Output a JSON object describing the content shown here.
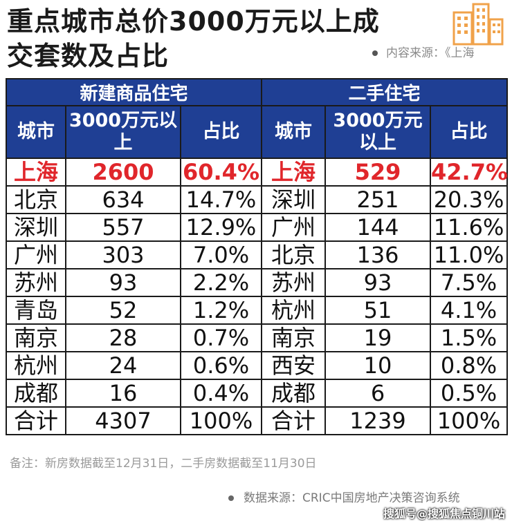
{
  "title": {
    "line1": "重点城市总价3000万元以上成",
    "line2": "交套数及占比"
  },
  "source_top": "内容来源：《上海",
  "table": {
    "groups": {
      "new": "新建商品住宅",
      "second": "二手住宅"
    },
    "columns": {
      "city": "城市",
      "count": "3000万元以上",
      "share": "占比"
    },
    "rows": [
      {
        "new_city": "上海",
        "new_count": "2600",
        "new_share": "60.4%",
        "sec_city": "上海",
        "sec_count": "529",
        "sec_share": "42.7%"
      },
      {
        "new_city": "北京",
        "new_count": "634",
        "new_share": "14.7%",
        "sec_city": "深圳",
        "sec_count": "251",
        "sec_share": "20.3%"
      },
      {
        "new_city": "深圳",
        "new_count": "557",
        "new_share": "12.9%",
        "sec_city": "广州",
        "sec_count": "144",
        "sec_share": "11.6%"
      },
      {
        "new_city": "广州",
        "new_count": "303",
        "new_share": "7.0%",
        "sec_city": "北京",
        "sec_count": "136",
        "sec_share": "11.0%"
      },
      {
        "new_city": "苏州",
        "new_count": "93",
        "new_share": "2.2%",
        "sec_city": "苏州",
        "sec_count": "93",
        "sec_share": "7.5%"
      },
      {
        "new_city": "青岛",
        "new_count": "52",
        "new_share": "1.2%",
        "sec_city": "杭州",
        "sec_count": "51",
        "sec_share": "4.1%"
      },
      {
        "new_city": "南京",
        "new_count": "28",
        "new_share": "0.7%",
        "sec_city": "南京",
        "sec_count": "19",
        "sec_share": "1.5%"
      },
      {
        "new_city": "杭州",
        "new_count": "24",
        "new_share": "0.6%",
        "sec_city": "西安",
        "sec_count": "10",
        "sec_share": "0.8%"
      },
      {
        "new_city": "成都",
        "new_count": "16",
        "new_share": "0.4%",
        "sec_city": "成都",
        "sec_count": "6",
        "sec_share": "0.5%"
      },
      {
        "new_city": "合计",
        "new_count": "4307",
        "new_share": "100%",
        "sec_city": "合计",
        "sec_count": "1239",
        "sec_share": "100%"
      }
    ]
  },
  "note": "备注：新房数据截至12月31日，二手房数据截至11月30日",
  "footer_source": "数据来源：CRIC中国房地产决策咨询系统",
  "watermark": "搜狐号@搜狐焦点铜川站",
  "colors": {
    "header_bg": "#1f3f94",
    "highlight": "#e0262b",
    "logo_orange": "#f0a24a"
  },
  "icons": {
    "logo": "building-icon"
  }
}
